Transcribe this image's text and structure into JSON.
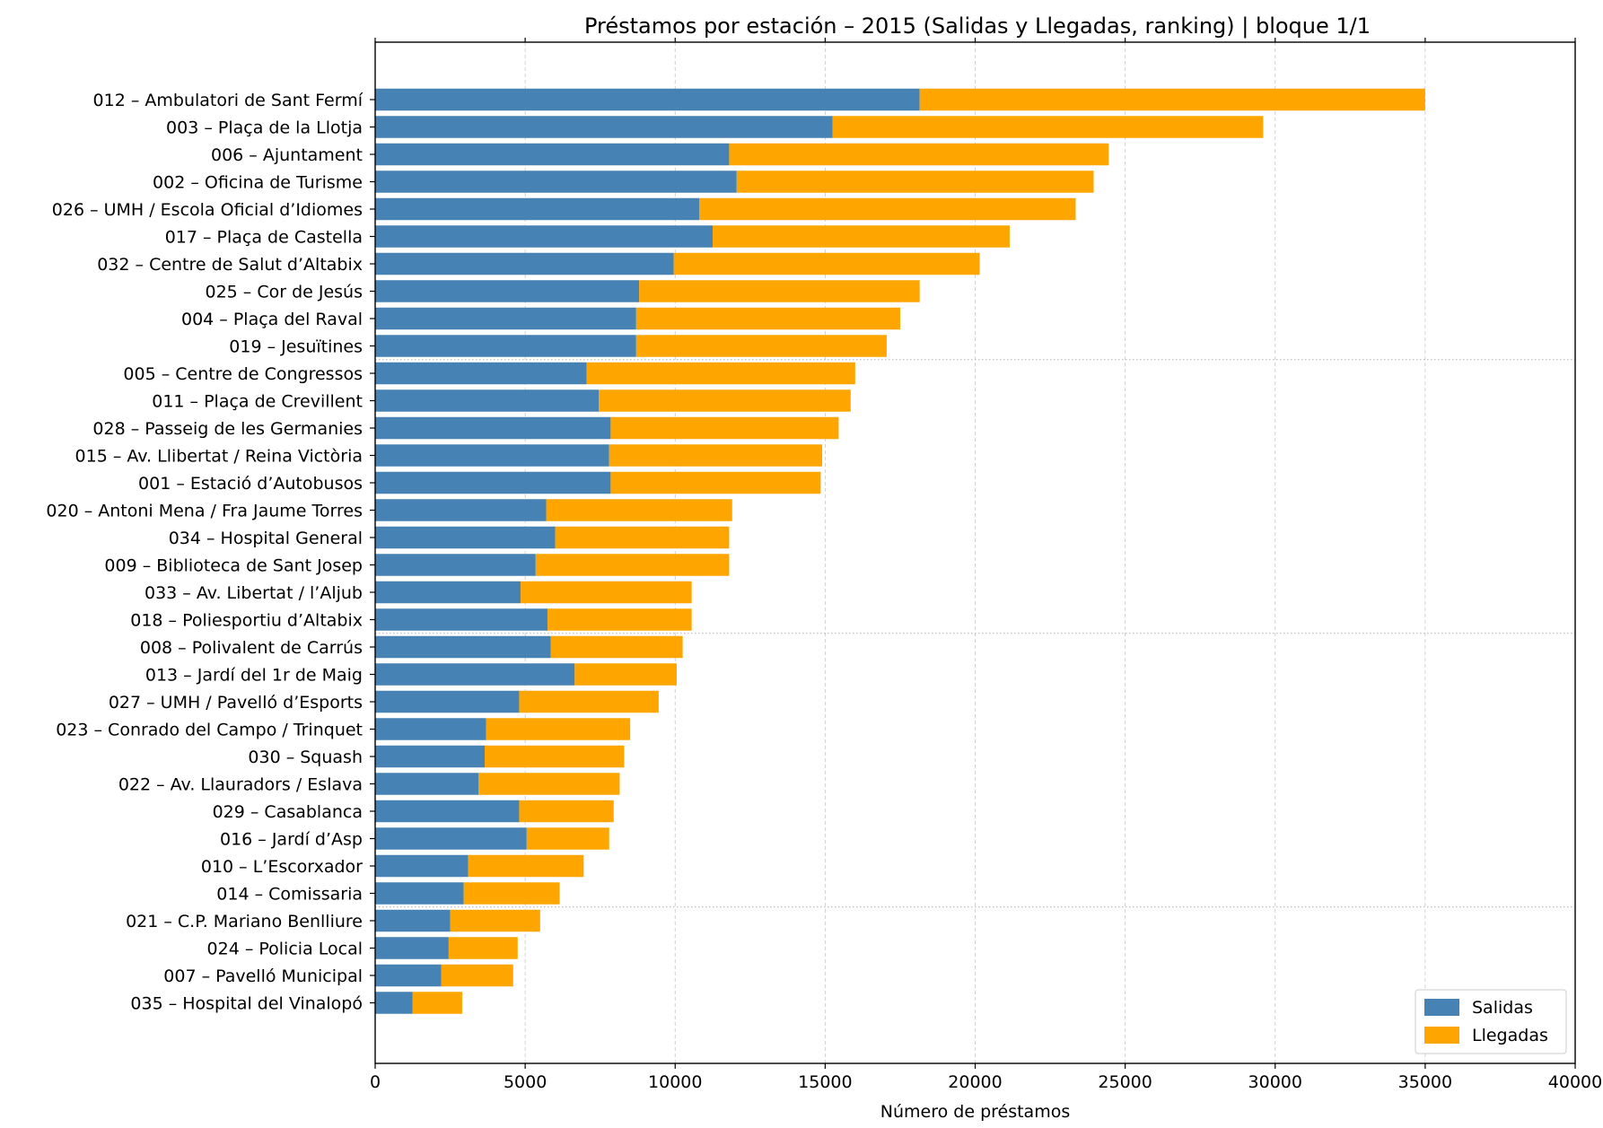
{
  "chart_data": {
    "type": "bar",
    "orientation": "horizontal",
    "stacked": true,
    "title": "Préstamos por estación – 2015 (Salidas y Llegadas, ranking)  |  bloque 1/1",
    "xlabel": "Número de préstamos",
    "ylabel": "",
    "xlim": [
      0,
      40000
    ],
    "xticks": [
      "0",
      "5000",
      "10000",
      "15000",
      "20000",
      "25000",
      "30000",
      "35000",
      "40000"
    ],
    "grid": "x-dashed",
    "legend_position": "bottom-right",
    "categories": [
      "012 – Ambulatori de Sant Fermí",
      "003 – Plaça de la Llotja",
      "006 – Ajuntament",
      "002 – Oficina de Turisme",
      "026 – UMH / Escola Oficial d’Idiomes",
      "017 – Plaça de Castella",
      "032 – Centre de Salut d’Altabix",
      "025 – Cor de Jesús",
      "004 – Plaça del Raval",
      "019 – Jesuïtines",
      "005 – Centre de Congressos",
      "011 – Plaça de Crevillent",
      "028 – Passeig de les Germanies",
      "015 – Av. Llibertat / Reina Victòria",
      "001 – Estació d’Autobusos",
      "020 – Antoni Mena / Fra Jaume Torres",
      "034 – Hospital General",
      "009 – Biblioteca de Sant Josep",
      "033 – Av. Libertat / l’Aljub",
      "018 – Poliesportiu d’Altabix",
      "008 – Polivalent de Carrús",
      "013 – Jardí del 1r de Maig",
      "027 – UMH / Pavelló d’Esports",
      "023 – Conrado del Campo / Trinquet",
      "030 – Squash",
      "022 – Av. Llauradors / Eslava",
      "029 – Casablanca",
      "016 – Jardí d’Asp",
      "010 – L’Escorxador",
      "014 – Comissaria",
      "021 – C.P. Mariano Benlliure",
      "024 – Policia Local",
      "007 – Pavelló Municipal",
      "035 – Hospital del Vinalopó"
    ],
    "series": [
      {
        "name": "Salidas",
        "color": "#4682b4",
        "values": [
          18150,
          15250,
          11800,
          12050,
          10800,
          11250,
          9950,
          8800,
          8700,
          8700,
          7050,
          7450,
          7850,
          7800,
          7850,
          5700,
          6000,
          5350,
          4850,
          5750,
          5850,
          6650,
          4800,
          3700,
          3650,
          3450,
          4800,
          5050,
          3100,
          2950,
          2500,
          2450,
          2200,
          1250
        ]
      },
      {
        "name": "Llegadas",
        "color": "#ffa500",
        "values": [
          16850,
          14350,
          12650,
          11900,
          12550,
          9900,
          10200,
          9350,
          8800,
          8350,
          8950,
          8400,
          7600,
          7100,
          7000,
          6200,
          5800,
          6450,
          5700,
          4800,
          4400,
          3400,
          4650,
          4800,
          4650,
          4700,
          3150,
          2750,
          3850,
          3200,
          3000,
          2300,
          2400,
          1650
        ]
      }
    ]
  }
}
